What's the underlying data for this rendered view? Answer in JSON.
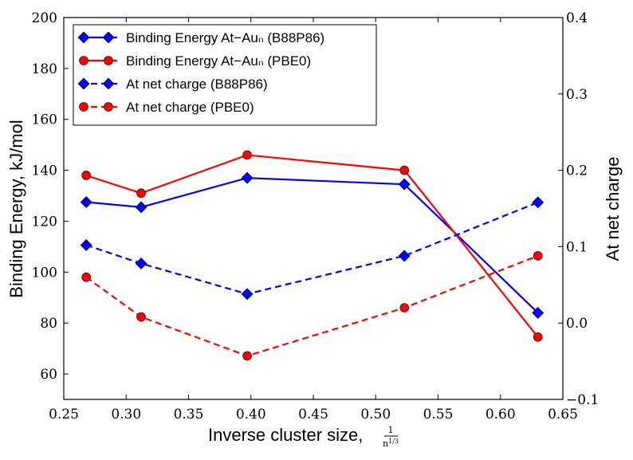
{
  "chart_data": {
    "type": "line",
    "xlabel": "Inverse cluster size, 1/n^(1/3)",
    "ylabel": "Binding Energy, kJ/mol",
    "y2label": "At net charge",
    "xlim": [
      0.25,
      0.65
    ],
    "ylim": [
      50,
      200
    ],
    "y2lim": [
      -0.1,
      0.4
    ],
    "xticks": [
      "0.25",
      "0.30",
      "0.35",
      "0.40",
      "0.45",
      "0.50",
      "0.55",
      "0.60",
      "0.65"
    ],
    "yticks": [
      "60",
      "80",
      "100",
      "120",
      "140",
      "160",
      "180",
      "200"
    ],
    "y2ticks": [
      "−0.1",
      "0.0",
      "0.1",
      "0.2",
      "0.3",
      "0.4"
    ],
    "grid": false,
    "legend_position": "top-left",
    "series": [
      {
        "name": "Binding Energy At−Auₙ (B88P86)",
        "axis": "left",
        "style": "solid",
        "marker": "diamond",
        "color": "#0000ff",
        "x": [
          0.268,
          0.312,
          0.397,
          0.523,
          0.63
        ],
        "values": [
          127.5,
          125.5,
          137,
          134.5,
          84
        ]
      },
      {
        "name": "Binding Energy At−Auₙ (PBE0)",
        "axis": "left",
        "style": "solid",
        "marker": "circle",
        "color": "#ff0000",
        "x": [
          0.268,
          0.312,
          0.397,
          0.523,
          0.63
        ],
        "values": [
          138,
          131,
          146,
          140,
          74.5
        ]
      },
      {
        "name": "At net charge (B88P86)",
        "axis": "right",
        "style": "dashed",
        "marker": "diamond",
        "color": "#0000ff",
        "x": [
          0.268,
          0.312,
          0.397,
          0.523,
          0.63
        ],
        "values": [
          0.102,
          0.078,
          0.038,
          0.088,
          0.158
        ]
      },
      {
        "name": "At net charge (PBE0)",
        "axis": "right",
        "style": "dashed",
        "marker": "circle",
        "color": "#ff0000",
        "x": [
          0.268,
          0.312,
          0.397,
          0.523,
          0.63
        ],
        "values": [
          0.06,
          0.008,
          -0.043,
          0.02,
          0.088
        ]
      }
    ]
  }
}
